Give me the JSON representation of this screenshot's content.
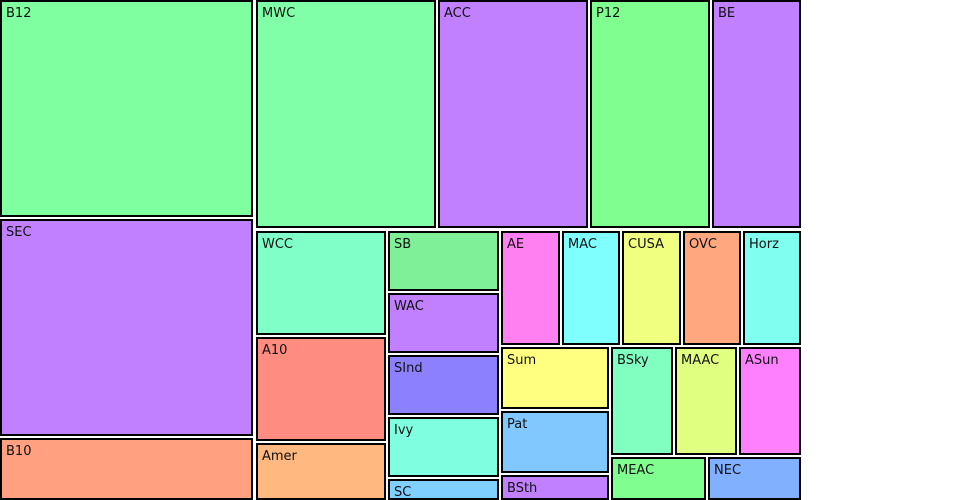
{
  "chart_data": {
    "type": "treemap",
    "cells": [
      {
        "label": "B12",
        "color": "#80ffa0"
      },
      {
        "label": "SEC",
        "color": "#c080ff"
      },
      {
        "label": "B10",
        "color": "#ffa080"
      },
      {
        "label": "MWC",
        "color": "#80ffa8"
      },
      {
        "label": "ACC",
        "color": "#c080ff"
      },
      {
        "label": "P12",
        "color": "#80ff90"
      },
      {
        "label": "BE",
        "color": "#c080ff"
      },
      {
        "label": "WCC",
        "color": "#80ffc8"
      },
      {
        "label": "A10",
        "color": "#ff8c80"
      },
      {
        "label": "Amer",
        "color": "#ffb880"
      },
      {
        "label": "SB",
        "color": "#80f098"
      },
      {
        "label": "WAC",
        "color": "#c080ff"
      },
      {
        "label": "SInd",
        "color": "#8c80ff"
      },
      {
        "label": "Ivy",
        "color": "#80ffe0"
      },
      {
        "label": "SC",
        "color": "#80d0ff"
      },
      {
        "label": "AE",
        "color": "#ff80f0"
      },
      {
        "label": "MAC",
        "color": "#80ffff"
      },
      {
        "label": "CUSA",
        "color": "#f0ff80"
      },
      {
        "label": "OVC",
        "color": "#ffa880"
      },
      {
        "label": "Horz",
        "color": "#80fff0"
      },
      {
        "label": "Sum",
        "color": "#ffff80"
      },
      {
        "label": "Pat",
        "color": "#80c8ff"
      },
      {
        "label": "BSth",
        "color": "#c080ff"
      },
      {
        "label": "BSky",
        "color": "#80ffc0"
      },
      {
        "label": "MAAC",
        "color": "#e0ff80"
      },
      {
        "label": "ASun",
        "color": "#ff80ff"
      },
      {
        "label": "MEAC",
        "color": "#80ff90"
      },
      {
        "label": "NEC",
        "color": "#80b0ff"
      }
    ]
  }
}
